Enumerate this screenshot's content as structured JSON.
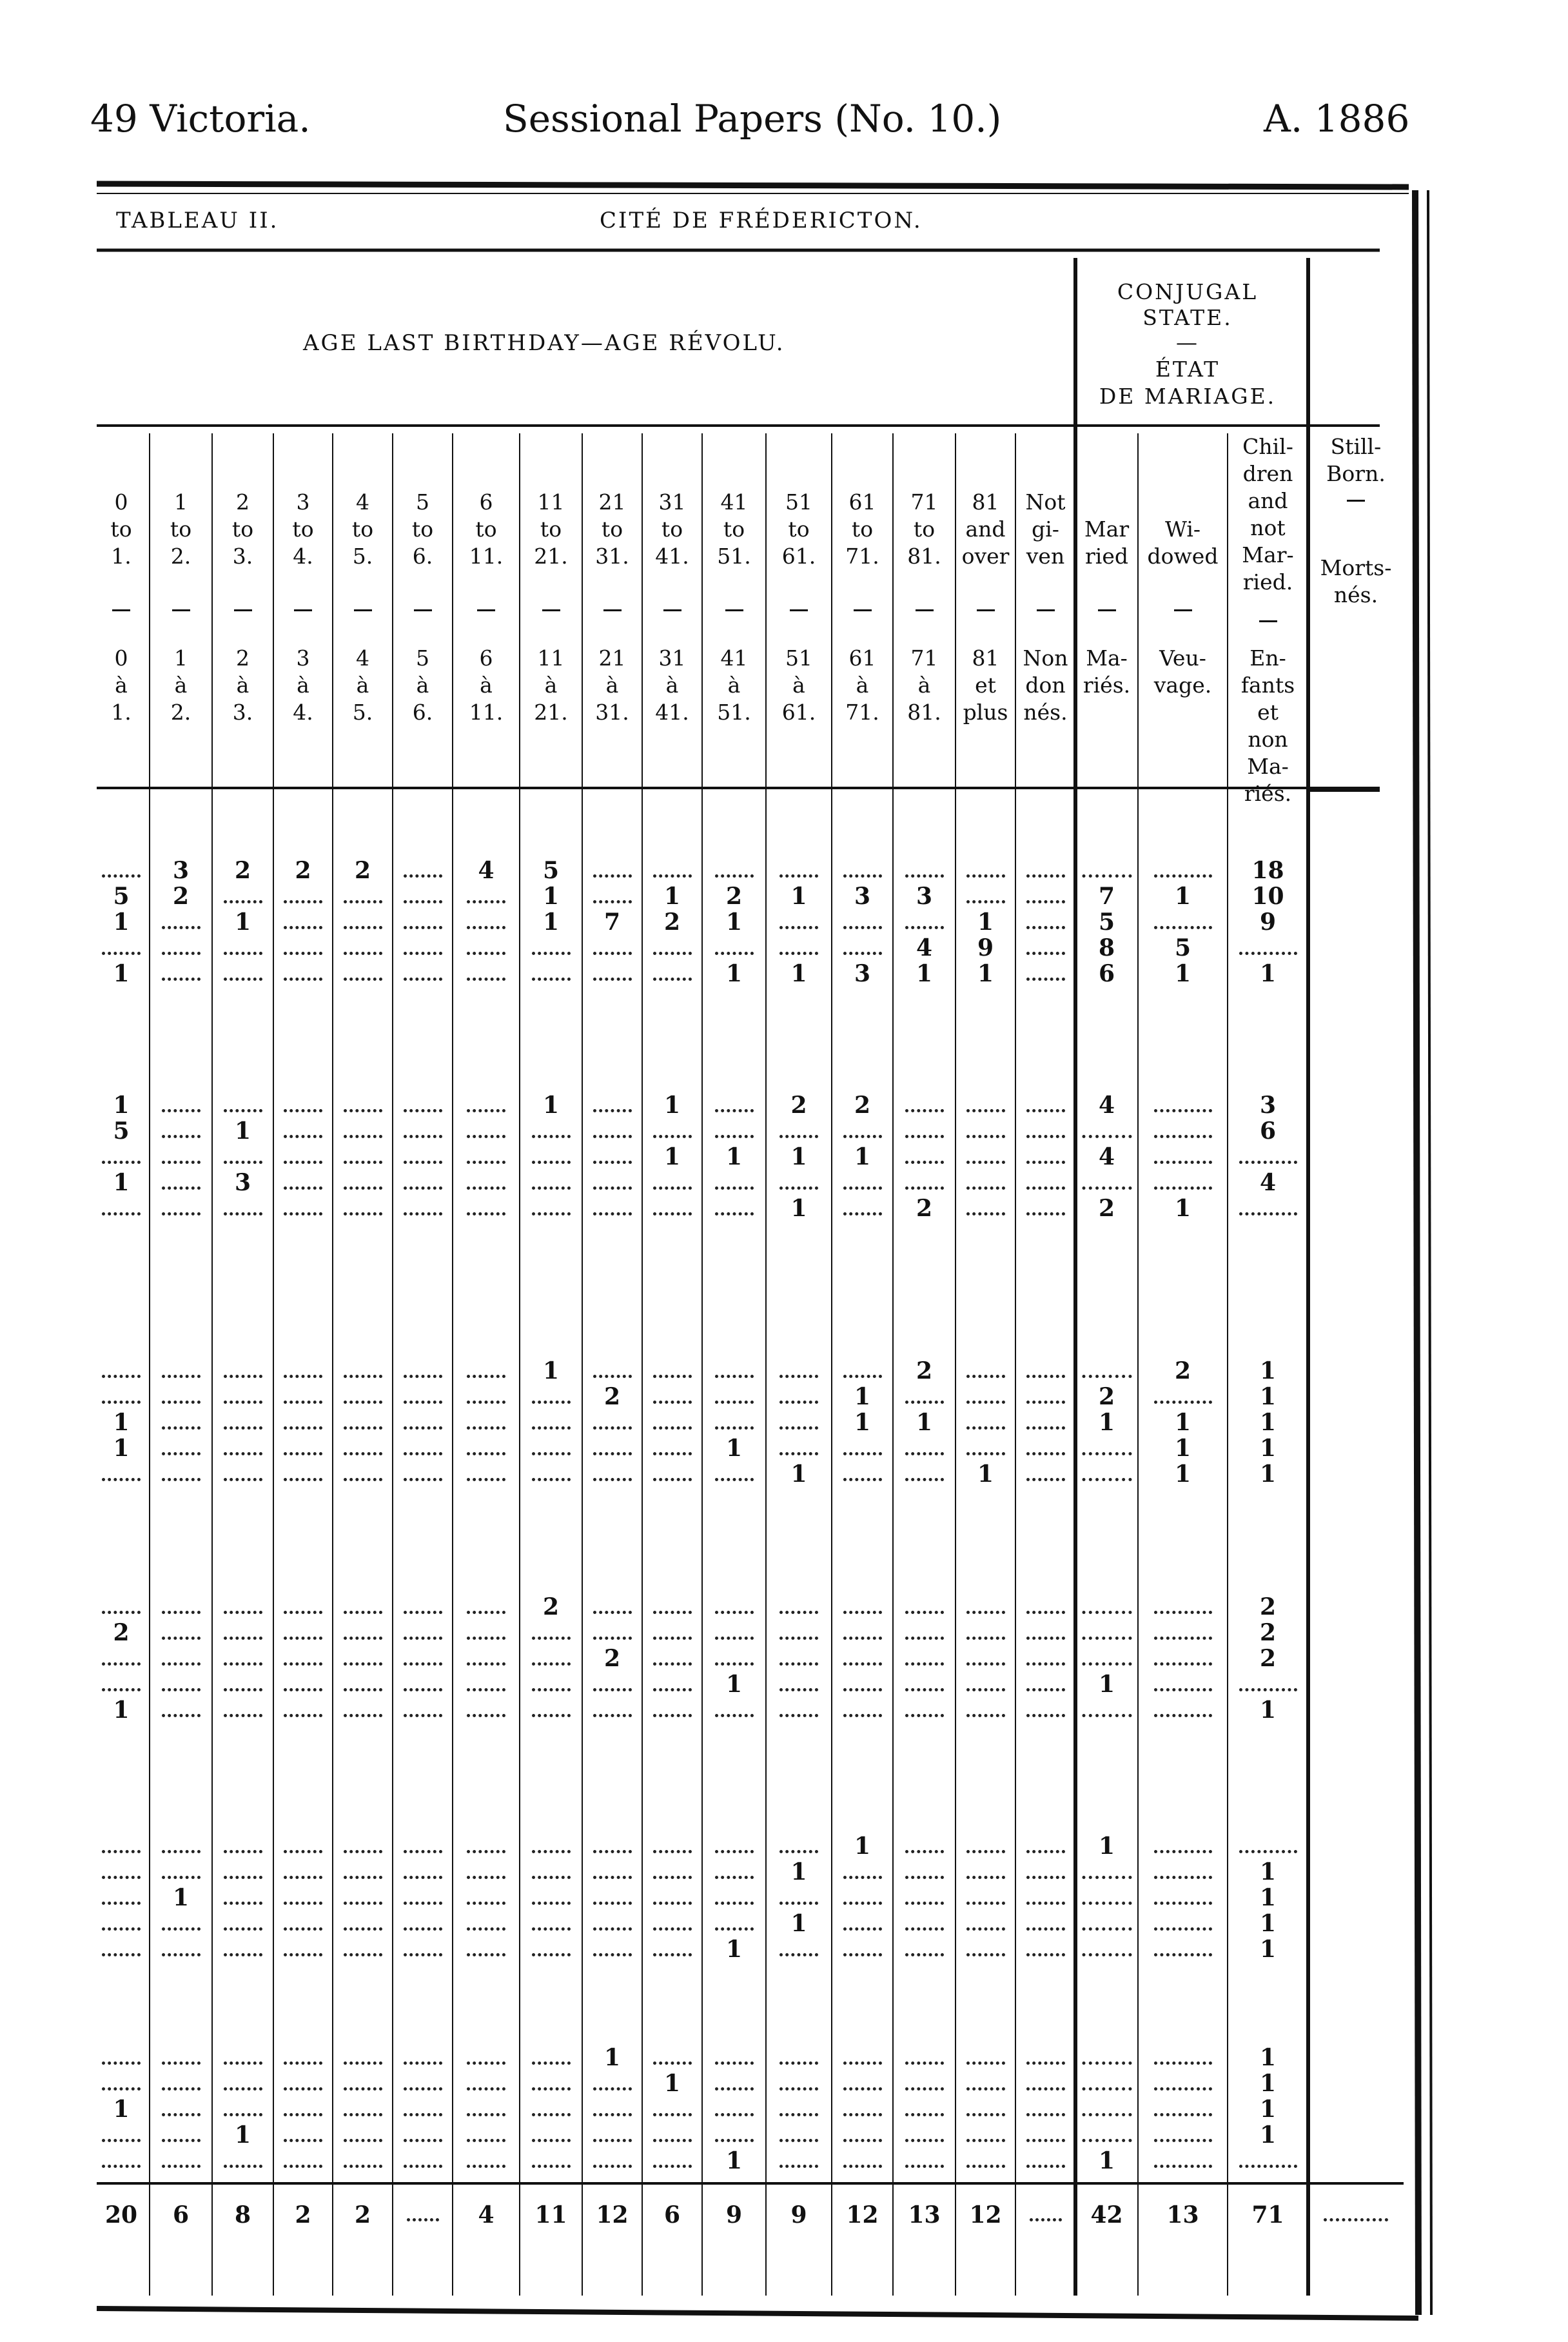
{
  "running_head": {
    "left": "49 Victoria.",
    "center": "Sessional Papers (No. 10.)",
    "right": "A. 1886"
  },
  "table_label": "TABLEAU II.",
  "table_title": "CITÉ DE FRÉDERICTON.",
  "age_header": "AGE LAST BIRTHDAY—AGE RÉVOLU.",
  "conjugal_header": [
    "CONJUGAL",
    "STATE.",
    "—",
    "ÉTAT",
    "DE MARIAGE."
  ],
  "columns": [
    {
      "en": [
        "0",
        "to",
        "1."
      ],
      "fr": [
        "0",
        "à",
        "1."
      ]
    },
    {
      "en": [
        "1",
        "to",
        "2."
      ],
      "fr": [
        "1",
        "à",
        "2."
      ]
    },
    {
      "en": [
        "2",
        "to",
        "3."
      ],
      "fr": [
        "2",
        "à",
        "3."
      ]
    },
    {
      "en": [
        "3",
        "to",
        "4."
      ],
      "fr": [
        "3",
        "à",
        "4."
      ]
    },
    {
      "en": [
        "4",
        "to",
        "5."
      ],
      "fr": [
        "4",
        "à",
        "5."
      ]
    },
    {
      "en": [
        "5",
        "to",
        "6."
      ],
      "fr": [
        "5",
        "à",
        "6."
      ]
    },
    {
      "en": [
        "6",
        "to",
        "11."
      ],
      "fr": [
        "6",
        "à",
        "11."
      ]
    },
    {
      "en": [
        "11",
        "to",
        "21."
      ],
      "fr": [
        "11",
        "à",
        "21."
      ]
    },
    {
      "en": [
        "21",
        "to",
        "31."
      ],
      "fr": [
        "21",
        "à",
        "31."
      ]
    },
    {
      "en": [
        "31",
        "to",
        "41."
      ],
      "fr": [
        "31",
        "à",
        "41."
      ]
    },
    {
      "en": [
        "41",
        "to",
        "51."
      ],
      "fr": [
        "41",
        "à",
        "51."
      ]
    },
    {
      "en": [
        "51",
        "to",
        "61."
      ],
      "fr": [
        "51",
        "à",
        "61."
      ]
    },
    {
      "en": [
        "61",
        "to",
        "71."
      ],
      "fr": [
        "61",
        "à",
        "71."
      ]
    },
    {
      "en": [
        "71",
        "to",
        "81."
      ],
      "fr": [
        "71",
        "à",
        "81."
      ]
    },
    {
      "en": [
        "81",
        "and",
        "over"
      ],
      "fr": [
        "81",
        "et",
        "plus"
      ]
    },
    {
      "en": [
        "Not",
        "gi-",
        "ven"
      ],
      "fr": [
        "Non",
        "don",
        "nés."
      ]
    },
    {
      "en": [
        "Mar",
        "ried"
      ],
      "fr": [
        "Ma-",
        "riés."
      ]
    },
    {
      "en": [
        "Wi-",
        "dowed"
      ],
      "fr": [
        "Veu-",
        "vage."
      ]
    },
    {
      "en": [
        "Chil-",
        "dren",
        "and",
        "not",
        "Mar-",
        "ried."
      ],
      "fr": [
        "En-",
        "fants",
        "et",
        "non",
        "Ma-",
        "riés."
      ]
    },
    {
      "en": [
        "Still-",
        "Born."
      ],
      "fr": [
        "Morts-",
        "nés."
      ]
    }
  ],
  "groups": [
    [
      [
        "",
        "3",
        "2",
        "2",
        "2",
        "",
        "4",
        "5",
        "",
        "",
        "",
        "",
        "",
        "",
        "",
        "",
        "",
        "",
        "18",
        ""
      ],
      [
        "5",
        "2",
        "",
        "",
        "",
        "",
        "",
        "1",
        "",
        "1",
        "2",
        "1",
        "3",
        "3",
        "",
        "",
        "7",
        "1",
        "10",
        ""
      ],
      [
        "1",
        "",
        "1",
        "",
        "",
        "",
        "",
        "1",
        "7",
        "2",
        "1",
        "",
        "",
        "",
        "1",
        "",
        "5",
        "",
        "9",
        ""
      ],
      [
        "",
        "",
        "",
        "",
        "",
        "",
        "",
        "",
        "",
        "",
        "",
        "",
        "",
        "4",
        "9",
        "",
        "8",
        "5",
        "",
        ""
      ],
      [
        "1",
        "",
        "",
        "",
        "",
        "",
        "",
        "",
        "",
        "",
        "1",
        "1",
        "3",
        "1",
        "1",
        "",
        "6",
        "1",
        "1",
        ""
      ]
    ],
    [
      [
        "1",
        "",
        "",
        "",
        "",
        "",
        "",
        "1",
        "",
        "1",
        "",
        "2",
        "2",
        "",
        "",
        "",
        "4",
        "",
        "3",
        ""
      ],
      [
        "5",
        "",
        "1",
        "",
        "",
        "",
        "",
        "",
        "",
        "",
        "",
        "",
        "",
        "",
        "",
        "",
        "",
        "",
        "6",
        ""
      ],
      [
        "",
        "",
        "",
        "",
        "",
        "",
        "",
        "",
        "",
        "1",
        "1",
        "1",
        "1",
        "",
        "",
        "",
        "4",
        "",
        "",
        ""
      ],
      [
        "1",
        "",
        "3",
        "",
        "",
        "",
        "",
        "",
        "",
        "",
        "",
        "",
        "",
        "",
        "",
        "",
        "",
        "",
        "4",
        ""
      ],
      [
        "",
        "",
        "",
        "",
        "",
        "",
        "",
        "",
        "",
        "",
        "",
        "1",
        "",
        "2",
        "",
        "",
        "2",
        "1",
        "",
        ""
      ]
    ],
    [
      [
        "",
        "",
        "",
        "",
        "",
        "",
        "",
        "1",
        "",
        "",
        "",
        "",
        "",
        "2",
        "",
        "",
        "",
        "2",
        "1",
        ""
      ],
      [
        "",
        "",
        "",
        "",
        "",
        "",
        "",
        "",
        "2",
        "",
        "",
        "",
        "1",
        "",
        "",
        "",
        "2",
        "",
        "1",
        ""
      ],
      [
        "1",
        "",
        "",
        "",
        "",
        "",
        "",
        "",
        "",
        "",
        "",
        "",
        "1",
        "1",
        "",
        "",
        "1",
        "1",
        "1",
        ""
      ],
      [
        "1",
        "",
        "",
        "",
        "",
        "",
        "",
        "",
        "",
        "",
        "1",
        "",
        "",
        "",
        "",
        "",
        "",
        "1",
        "1",
        ""
      ],
      [
        "",
        "",
        "",
        "",
        "",
        "",
        "",
        "",
        "",
        "",
        "",
        "1",
        "",
        "",
        "1",
        "",
        "",
        "1",
        "1",
        ""
      ]
    ],
    [
      [
        "",
        "",
        "",
        "",
        "",
        "",
        "",
        "2",
        "",
        "",
        "",
        "",
        "",
        "",
        "",
        "",
        "",
        "",
        "2",
        ""
      ],
      [
        "2",
        "",
        "",
        "",
        "",
        "",
        "",
        "",
        "",
        "",
        "",
        "",
        "",
        "",
        "",
        "",
        "",
        "",
        "2",
        ""
      ],
      [
        "",
        "",
        "",
        "",
        "",
        "",
        "",
        "",
        "2",
        "",
        "",
        "",
        "",
        "",
        "",
        "",
        "",
        "",
        "2",
        ""
      ],
      [
        "",
        "",
        "",
        "",
        "",
        "",
        "",
        "",
        "",
        "",
        "1",
        "",
        "",
        "",
        "",
        "",
        "1",
        "",
        "",
        ""
      ],
      [
        "1",
        "",
        "",
        "",
        "",
        "",
        "",
        "",
        "",
        "",
        "",
        "",
        "",
        "",
        "",
        "",
        "",
        "",
        "1",
        ""
      ]
    ],
    [
      [
        "",
        "",
        "",
        "",
        "",
        "",
        "",
        "",
        "",
        "",
        "",
        "",
        "1",
        "",
        "",
        "",
        "1",
        "",
        "",
        ""
      ],
      [
        "",
        "",
        "",
        "",
        "",
        "",
        "",
        "",
        "",
        "",
        "",
        "1",
        "",
        "",
        "",
        "",
        "",
        "",
        "1",
        ""
      ],
      [
        "",
        "1",
        "",
        "",
        "",
        "",
        "",
        "",
        "",
        "",
        "",
        "",
        "",
        "",
        "",
        "",
        "",
        "",
        "1",
        ""
      ],
      [
        "",
        "",
        "",
        "",
        "",
        "",
        "",
        "",
        "",
        "",
        "",
        "1",
        "",
        "",
        "",
        "",
        "",
        "",
        "1",
        ""
      ],
      [
        "",
        "",
        "",
        "",
        "",
        "",
        "",
        "",
        "",
        "",
        "1",
        "",
        "",
        "",
        "",
        "",
        "",
        "",
        "1",
        ""
      ]
    ],
    [
      [
        "",
        "",
        "",
        "",
        "",
        "",
        "",
        "",
        "1",
        "",
        "",
        "",
        "",
        "",
        "",
        "",
        "",
        "",
        "1",
        ""
      ],
      [
        "",
        "",
        "",
        "",
        "",
        "",
        "",
        "",
        "",
        "1",
        "",
        "",
        "",
        "",
        "",
        "",
        "",
        "",
        "1",
        ""
      ],
      [
        "1",
        "",
        "",
        "",
        "",
        "",
        "",
        "",
        "",
        "",
        "",
        "",
        "",
        "",
        "",
        "",
        "",
        "",
        "1",
        ""
      ],
      [
        "",
        "",
        "1",
        "",
        "",
        "",
        "",
        "",
        "",
        "",
        "",
        "",
        "",
        "",
        "",
        "",
        "",
        "",
        "1",
        ""
      ],
      [
        "",
        "",
        "",
        "",
        "",
        "",
        "",
        "",
        "",
        "",
        "1",
        "",
        "",
        "",
        "",
        "",
        "1",
        "",
        "",
        ""
      ]
    ]
  ],
  "totals": [
    "20",
    "6",
    "8",
    "2",
    "2",
    "",
    "4",
    "11",
    "12",
    "6",
    "9",
    "9",
    "12",
    "13",
    "12",
    "",
    "42",
    "13",
    "71",
    ""
  ]
}
